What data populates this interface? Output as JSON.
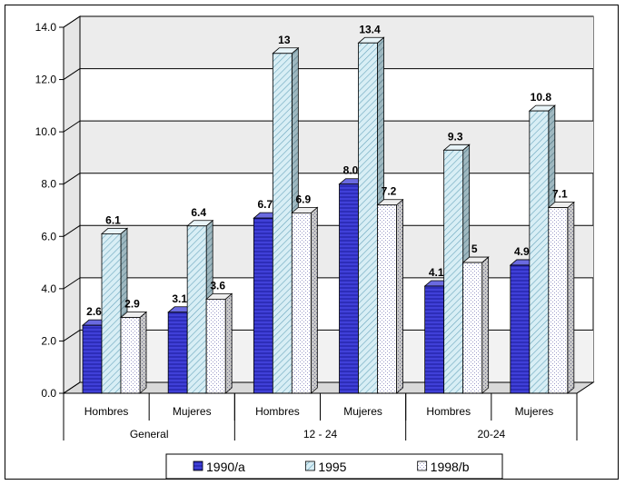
{
  "chart_data": {
    "type": "bar",
    "title": "",
    "xlabel": "",
    "ylabel": "",
    "ylim": [
      0,
      14
    ],
    "yticks": [
      0,
      2,
      4,
      6,
      8,
      10,
      12,
      14
    ],
    "ytick_labels": [
      "0.0",
      "2.0",
      "4.0",
      "6.0",
      "8.0",
      "10.0",
      "12.0",
      "14.0"
    ],
    "groups": [
      {
        "label": "General",
        "categories": [
          "Hombres",
          "Mujeres"
        ]
      },
      {
        "label": "12 - 24",
        "categories": [
          "Hombres",
          "Mujeres"
        ]
      },
      {
        "label": "20-24",
        "categories": [
          "Hombres",
          "Mujeres"
        ]
      }
    ],
    "categories": [
      "Hombres",
      "Mujeres",
      "Hombres",
      "Mujeres",
      "Hombres",
      "Mujeres"
    ],
    "series": [
      {
        "name": "1990/a",
        "values": [
          2.6,
          3.1,
          6.7,
          8.0,
          4.1,
          4.9
        ],
        "labels": [
          "2.6",
          "3.1",
          "6.7",
          "8.0",
          "4.1",
          "4.9"
        ],
        "color": "#3333cc"
      },
      {
        "name": "1995",
        "values": [
          6.1,
          6.4,
          13,
          13.4,
          9.3,
          10.8
        ],
        "labels": [
          "6.1",
          "6.4",
          "13",
          "13.4",
          "9.3",
          "10.8"
        ],
        "color": "#cce8f0"
      },
      {
        "name": "1998/b",
        "values": [
          2.9,
          3.6,
          6.9,
          7.2,
          5,
          7.1
        ],
        "labels": [
          "2.9",
          "3.6",
          "6.9",
          "7.2",
          "5",
          "7.1"
        ],
        "color": "#ffffff"
      }
    ],
    "legend_position": "bottom",
    "grid": true
  }
}
